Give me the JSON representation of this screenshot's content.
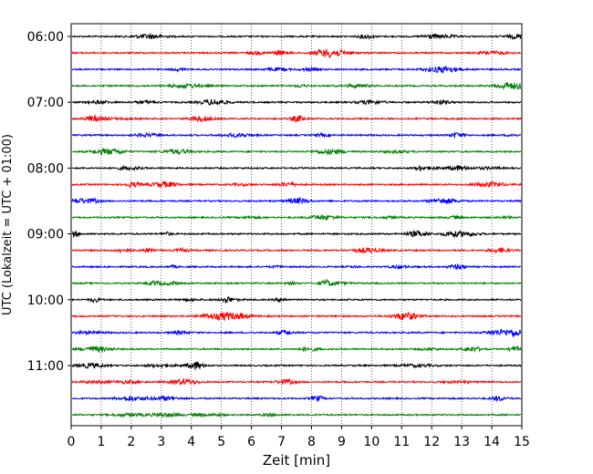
{
  "chart_data": {
    "type": "line",
    "title": "",
    "xlabel": "Zeit  [min]",
    "ylabel": "UTC (Lokalzeit = UTC + 01:00)",
    "xlim": [
      0,
      15
    ],
    "x_ticks": [
      0,
      1,
      2,
      3,
      4,
      5,
      6,
      7,
      8,
      9,
      10,
      11,
      12,
      13,
      14,
      15
    ],
    "y_tick_labels": [
      "06:00",
      "07:00",
      "08:00",
      "09:00",
      "10:00",
      "11:00"
    ],
    "grid": "vertical dotted",
    "trace_interval_min": 15,
    "trace_colors": [
      "#000000",
      "#ff0000",
      "#0000ff",
      "#008000"
    ],
    "traces": [
      {
        "start": "06:00"
      },
      {
        "start": "06:15"
      },
      {
        "start": "06:30"
      },
      {
        "start": "06:45"
      },
      {
        "start": "07:00"
      },
      {
        "start": "07:15"
      },
      {
        "start": "07:30"
      },
      {
        "start": "07:45"
      },
      {
        "start": "08:00"
      },
      {
        "start": "08:15"
      },
      {
        "start": "08:30"
      },
      {
        "start": "08:45"
      },
      {
        "start": "09:00"
      },
      {
        "start": "09:15"
      },
      {
        "start": "09:30"
      },
      {
        "start": "09:45"
      },
      {
        "start": "10:00"
      },
      {
        "start": "10:15"
      },
      {
        "start": "10:30"
      },
      {
        "start": "10:45"
      },
      {
        "start": "11:00"
      },
      {
        "start": "11:15"
      },
      {
        "start": "11:30"
      },
      {
        "start": "11:45"
      }
    ]
  }
}
